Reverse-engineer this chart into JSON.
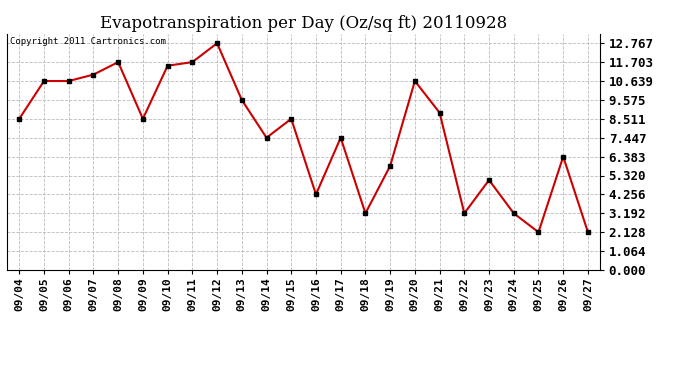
{
  "title": "Evapotranspiration per Day (Oz/sq ft) 20110928",
  "copyright": "Copyright 2011 Cartronics.com",
  "x_labels": [
    "09/04",
    "09/05",
    "09/06",
    "09/07",
    "09/08",
    "09/09",
    "09/10",
    "09/11",
    "09/12",
    "09/13",
    "09/14",
    "09/15",
    "09/16",
    "09/17",
    "09/18",
    "09/19",
    "09/20",
    "09/21",
    "09/22",
    "09/23",
    "09/24",
    "09/25",
    "09/26",
    "09/27"
  ],
  "y_values": [
    8.511,
    10.639,
    10.639,
    11.0,
    11.703,
    8.511,
    11.5,
    11.703,
    12.767,
    9.575,
    7.447,
    8.511,
    4.256,
    7.447,
    3.192,
    5.856,
    10.639,
    8.856,
    3.192,
    5.064,
    3.192,
    2.128,
    6.383,
    2.128
  ],
  "y_ticks": [
    0.0,
    1.064,
    2.128,
    3.192,
    4.256,
    5.32,
    6.383,
    7.447,
    8.511,
    9.575,
    10.639,
    11.703,
    12.767
  ],
  "line_color": "#cc0000",
  "marker": "s",
  "marker_color": "#000000",
  "marker_size": 3,
  "background_color": "#ffffff",
  "plot_bg_color": "#ffffff",
  "grid_color": "#bbbbbb",
  "title_fontsize": 12,
  "copyright_fontsize": 6.5,
  "tick_fontsize": 8,
  "ytick_fontsize": 9,
  "ylim": [
    0.0,
    13.3
  ]
}
